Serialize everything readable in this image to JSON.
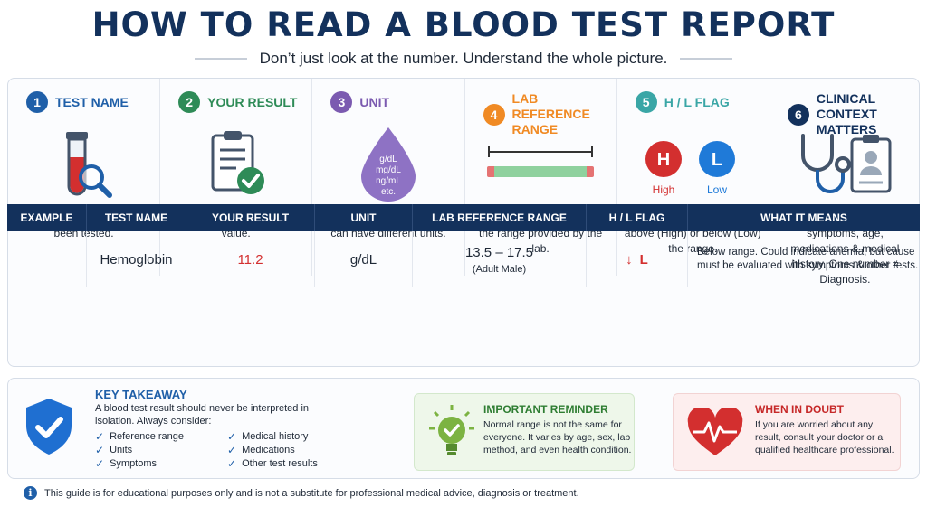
{
  "header": {
    "title": "HOW TO READ A BLOOD TEST REPORT",
    "subtitle": "Don’t just look at the number. Understand the whole picture."
  },
  "steps": [
    {
      "num": "1",
      "title": "TEST NAME",
      "desc": "Know exactly what has been tested.",
      "color": "#1f5fa8",
      "icon": "test-tube-magnifier-icon"
    },
    {
      "num": "2",
      "title": "YOUR RESULT",
      "desc": "This is your measured value.",
      "color": "#2e8b57",
      "icon": "clipboard-check-icon"
    },
    {
      "num": "3",
      "title": "UNIT",
      "desc": "Check the unit. Same tests can have different units.",
      "color": "#7b5ab0",
      "icon": "drop-icon",
      "icon_units": [
        "g/dL",
        "mg/dL",
        "ng/mL",
        "etc."
      ]
    },
    {
      "num": "4",
      "title": "LAB REFERENCE RANGE",
      "desc": "Compare your result with the range provided by the lab.",
      "color": "#f08a24",
      "icon": "range-bar-icon"
    },
    {
      "num": "5",
      "title": "H / L FLAG",
      "desc": "Shows if your result is above (High) or below (Low) the range.",
      "color": "#3aa6a6",
      "icon": "flag-icon",
      "high_letter": "H",
      "high_label": "High",
      "low_letter": "L",
      "low_label": "Low",
      "high_color": "#d32f2f",
      "low_color": "#1f7ad8"
    },
    {
      "num": "6",
      "title": "CLINICAL CONTEXT MATTERS",
      "desc": "Interpret with your symptoms, age, medications & medical history. One number ≠ Diagnosis.",
      "color": "#13315c",
      "icon": "stethoscope-record-icon"
    }
  ],
  "example": {
    "headers": [
      "EXAMPLE",
      "TEST NAME",
      "YOUR RESULT",
      "UNIT",
      "LAB REFERENCE RANGE",
      "H / L FLAG",
      "WHAT IT MEANS"
    ],
    "test_name": "Hemoglobin",
    "result": "11.2",
    "unit": "g/dL",
    "range": "13.5 – 17.5",
    "range_note": "(Adult Male)",
    "flag_arrow": "↓",
    "flag": "L",
    "meaning": "Below range. Could indicate anemia, but cause must be evaluated with symptoms & other tests."
  },
  "takeaway": {
    "title": "KEY TAKEAWAY",
    "text": "A blood test result should never be interpreted in isolation. Always consider:",
    "items_left": [
      "Reference range",
      "Units",
      "Symptoms"
    ],
    "items_right": [
      "Medical history",
      "Medications",
      "Other test results"
    ]
  },
  "reminder": {
    "title": "IMPORTANT REMINDER",
    "text": "Normal range is not the same for everyone. It varies by age, sex, lab method, and even health condition."
  },
  "doubt": {
    "title": "WHEN IN DOUBT",
    "text": "If you are worried about any result, consult your doctor or a qualified healthcare professional."
  },
  "disclaimer": "This guide is for educational purposes only and is not a substitute for professional medical advice, diagnosis or treatment.",
  "colors": {
    "navy": "#13315c",
    "blue": "#1f5fa8",
    "red": "#d32f2f",
    "green": "#2e8b57"
  }
}
